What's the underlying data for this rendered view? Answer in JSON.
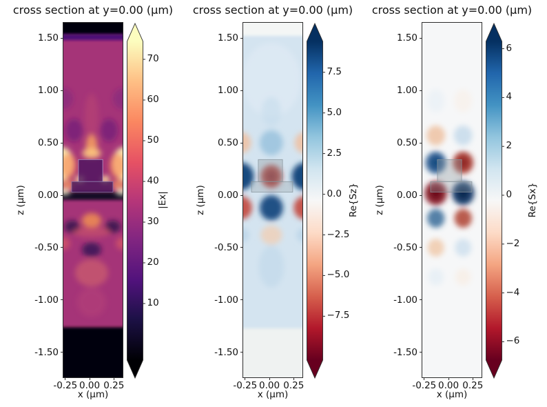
{
  "figure": {
    "background": "#ffffff",
    "text_color": "#111111",
    "spine_color": "#2b2b2b"
  },
  "chart_data": [
    {
      "type": "heatmap",
      "title": "cross section at y=0.00 (μm)",
      "xlabel": "x (μm)",
      "ylabel": "z (μm)",
      "xlim": [
        -0.27,
        0.34
      ],
      "zlim": [
        -1.737,
        1.645
      ],
      "grid": false,
      "xticks": {
        "values": [
          -0.25,
          0.0,
          0.25
        ],
        "labels": [
          "-0.25",
          "0.00",
          "0.25"
        ]
      },
      "zticks": {
        "values": [
          1.5,
          1.0,
          0.5,
          0.0,
          -0.5,
          -1.0,
          -1.5
        ],
        "labels": [
          "1.50",
          "1.00",
          "0.50",
          "0.00",
          "-0.50",
          "-1.00",
          "-1.50"
        ]
      },
      "colorbar": {
        "label": "|Ex|",
        "cmap": "magma",
        "extend": "both",
        "vmin": -3.9,
        "vmax": 74.4,
        "ticks": {
          "values": [
            70,
            60,
            50,
            40,
            30,
            20,
            10
          ],
          "labels": [
            "70",
            "60",
            "50",
            "40",
            "30",
            "20",
            "10"
          ]
        },
        "stops": [
          [
            0,
            "#000004"
          ],
          [
            0.13,
            "#1d1147"
          ],
          [
            0.25,
            "#51127c"
          ],
          [
            0.38,
            "#822681"
          ],
          [
            0.5,
            "#b63679"
          ],
          [
            0.62,
            "#e65164"
          ],
          [
            0.75,
            "#fb8861"
          ],
          [
            0.88,
            "#fec287"
          ],
          [
            1,
            "#fcfdbf"
          ]
        ]
      },
      "field": {
        "base": "#a53478",
        "bands": [
          {
            "z0": 1.645,
            "z1": 1.53,
            "color": "#050308",
            "blur": 1.5
          },
          {
            "z0": 1.535,
            "z1": 1.48,
            "color": "#4a1076",
            "blur": 2
          },
          {
            "z0": 0.03,
            "z1": -0.045,
            "color": "#150a28",
            "blur": 2
          },
          {
            "z0": -1.26,
            "z1": -1.737,
            "color": "#050308",
            "blur": 1.5
          }
        ],
        "blobs": [
          [
            -0.16,
            0.62,
            0.09,
            0.11,
            "#5e1a7a",
            0.55
          ],
          [
            0.2,
            0.62,
            0.09,
            0.11,
            "#5e1a7a",
            0.55
          ],
          [
            -0.27,
            0.92,
            0.1,
            0.1,
            "#731f80",
            0.45
          ],
          [
            0.34,
            0.92,
            0.1,
            0.1,
            "#731f80",
            0.45
          ],
          [
            0.02,
            0.75,
            0.07,
            0.22,
            "#c14a71",
            0.45
          ],
          [
            0.02,
            0.47,
            0.06,
            0.11,
            "#fca95f",
            0.8
          ],
          [
            0.02,
            0.4,
            0.1,
            0.05,
            "#fdc97f",
            0.85
          ],
          [
            -0.29,
            0.3,
            0.13,
            0.16,
            "#fdf0b0",
            0.95
          ],
          [
            0.36,
            0.3,
            0.13,
            0.16,
            "#fdf0b0",
            0.95
          ],
          [
            -0.22,
            0.28,
            0.09,
            0.12,
            "#f6824f",
            0.6
          ],
          [
            0.29,
            0.28,
            0.09,
            0.12,
            "#f6824f",
            0.6
          ],
          [
            -0.23,
            0.1,
            0.07,
            0.05,
            "#f79a5e",
            0.75
          ],
          [
            0.3,
            0.1,
            0.07,
            0.05,
            "#f79a5e",
            0.75
          ],
          [
            -0.1,
            0.15,
            0.045,
            0.035,
            "#fde9a0",
            0.95
          ],
          [
            0.16,
            0.15,
            0.045,
            0.035,
            "#fde9a0",
            0.95
          ],
          [
            -0.26,
            0.03,
            0.06,
            0.03,
            "#e9edc6",
            0.9
          ],
          [
            0.33,
            0.03,
            0.06,
            0.03,
            "#e9edc6",
            0.9
          ],
          [
            -0.18,
            -0.3,
            0.08,
            0.06,
            "#230e45",
            0.75
          ],
          [
            0.24,
            -0.3,
            0.08,
            0.06,
            "#230e45",
            0.75
          ],
          [
            0.02,
            -0.24,
            0.1,
            0.07,
            "#f5954f",
            0.8
          ],
          [
            0.02,
            -0.35,
            0.2,
            0.05,
            "#e06a60",
            0.4
          ],
          [
            0.02,
            -0.52,
            0.1,
            0.07,
            "#2a0f52",
            0.75
          ],
          [
            -0.27,
            -0.46,
            0.07,
            0.06,
            "#ed6a5e",
            0.5
          ],
          [
            0.34,
            -0.46,
            0.07,
            0.06,
            "#ed6a5e",
            0.5
          ],
          [
            0.02,
            -0.74,
            0.17,
            0.13,
            "#dd6f68",
            0.5
          ],
          [
            0.02,
            -1.02,
            0.15,
            0.14,
            "#c04b79",
            0.35
          ]
        ],
        "structures": [
          {
            "x0": -0.115,
            "x1": 0.135,
            "z0": 0.34,
            "z1": 0.13,
            "fill": "#45125e",
            "opacity": 0.75,
            "stroke": "#b5a0cc"
          },
          {
            "x0": -0.185,
            "x1": 0.24,
            "z0": 0.13,
            "z1": 0.03,
            "fill": "#3a1457",
            "opacity": 0.7,
            "stroke": "#8a77a8"
          }
        ]
      }
    },
    {
      "type": "heatmap",
      "title": "cross section at y=0.00 (μm)",
      "xlabel": "x (μm)",
      "ylabel": "z (μm)",
      "xlim": [
        -0.27,
        0.34
      ],
      "zlim": [
        -1.737,
        1.645
      ],
      "grid": false,
      "xticks": {
        "values": [
          -0.25,
          0.0,
          0.25
        ],
        "labels": [
          "-0.25",
          "0.00",
          "0.25"
        ]
      },
      "zticks": {
        "values": [
          1.5,
          1.0,
          0.5,
          0.0,
          -0.5,
          -1.0,
          -1.5
        ],
        "labels": [
          "1.50",
          "1.00",
          "0.50",
          "0.00",
          "-0.50",
          "-1.00",
          "-1.50"
        ]
      },
      "colorbar": {
        "label": "Re{Sz}",
        "cmap": "RdBu",
        "extend": "both",
        "vmin": -10.2,
        "vmax": 9.4,
        "ticks": {
          "values": [
            7.5,
            5.0,
            2.5,
            0.0,
            -2.5,
            -5.0,
            -7.5
          ],
          "labels": [
            "7.5",
            "5.0",
            "2.5",
            "0.0",
            "−2.5",
            "−5.0",
            "−7.5"
          ]
        },
        "stops": [
          [
            0,
            "#67001f"
          ],
          [
            0.1,
            "#b2182b"
          ],
          [
            0.2,
            "#d6604d"
          ],
          [
            0.3,
            "#f4a582"
          ],
          [
            0.4,
            "#fddbc7"
          ],
          [
            0.5,
            "#f7f7f7"
          ],
          [
            0.6,
            "#d1e5f0"
          ],
          [
            0.7,
            "#92c5de"
          ],
          [
            0.8,
            "#4393c3"
          ],
          [
            0.9,
            "#2166ac"
          ],
          [
            1,
            "#053061"
          ]
        ]
      },
      "field": {
        "base": "#d4e4f0",
        "bands": [
          {
            "z0": 1.645,
            "z1": 1.52,
            "color": "#f4f6f5",
            "blur": 2
          },
          {
            "z0": -1.27,
            "z1": -1.737,
            "color": "#eff2f1",
            "blur": 1.5
          }
        ],
        "blobs": [
          [
            0.02,
            1.1,
            0.3,
            0.35,
            "#e3edf5",
            0.55
          ],
          [
            0.02,
            0.8,
            0.1,
            0.14,
            "#c2d9ec",
            0.5
          ],
          [
            -0.29,
            0.5,
            0.1,
            0.1,
            "#f0c0a0",
            0.85
          ],
          [
            0.36,
            0.5,
            0.1,
            0.1,
            "#f0c0a0",
            0.85
          ],
          [
            0.02,
            0.5,
            0.12,
            0.12,
            "#9cc4de",
            0.9
          ],
          [
            -0.29,
            0.18,
            0.13,
            0.13,
            "#0f4179",
            0.95
          ],
          [
            0.36,
            0.18,
            0.13,
            0.13,
            "#0f4179",
            0.95
          ],
          [
            0.02,
            0.18,
            0.11,
            0.11,
            "#b23a31",
            0.95
          ],
          [
            0.02,
            0.18,
            0.055,
            0.055,
            "#8e2026",
            0.9
          ],
          [
            -0.29,
            -0.12,
            0.11,
            0.11,
            "#c34b40",
            0.92
          ],
          [
            0.36,
            -0.12,
            0.11,
            0.11,
            "#c34b40",
            0.92
          ],
          [
            0.02,
            -0.12,
            0.12,
            0.12,
            "#17497f",
            0.95
          ],
          [
            -0.29,
            -0.38,
            0.08,
            0.07,
            "#b5d2e7",
            0.7
          ],
          [
            0.36,
            -0.38,
            0.08,
            0.07,
            "#b5d2e7",
            0.7
          ],
          [
            0.02,
            -0.38,
            0.11,
            0.09,
            "#edd2bd",
            0.9
          ],
          [
            0.02,
            -0.68,
            0.13,
            0.2,
            "#bed7ea",
            0.6
          ]
        ],
        "structures": [
          {
            "x0": -0.115,
            "x1": 0.135,
            "z0": 0.34,
            "z1": 0.13,
            "fill": "#95a0a6",
            "opacity": 0.4,
            "stroke": "#86929a"
          },
          {
            "x0": -0.185,
            "x1": 0.24,
            "z0": 0.13,
            "z1": 0.03,
            "fill": "#95a0a6",
            "opacity": 0.33,
            "stroke": "#86929a"
          }
        ]
      }
    },
    {
      "type": "heatmap",
      "title": "cross section at y=0.00 (μm)",
      "xlabel": "x (μm)",
      "ylabel": "z (μm)",
      "xlim": [
        -0.27,
        0.34
      ],
      "zlim": [
        -1.737,
        1.645
      ],
      "grid": false,
      "xticks": {
        "values": [
          -0.25,
          0.0,
          0.25
        ],
        "labels": [
          "-0.25",
          "0.00",
          "0.25"
        ]
      },
      "zticks": {
        "values": [
          1.5,
          1.0,
          0.5,
          0.0,
          -0.5,
          -1.0,
          -1.5
        ],
        "labels": [
          "1.50",
          "1.00",
          "0.50",
          "0.00",
          "-0.50",
          "-1.00",
          "-1.50"
        ]
      },
      "colorbar": {
        "label": "Re{Sx}",
        "cmap": "RdBu",
        "extend": "both",
        "vmin": -6.75,
        "vmax": 6.3,
        "ticks": {
          "values": [
            6,
            4,
            2,
            0,
            -2,
            -4,
            -6
          ],
          "labels": [
            "6",
            "4",
            "2",
            "0",
            "−2",
            "−4",
            "−6"
          ]
        },
        "stops": [
          [
            0,
            "#67001f"
          ],
          [
            0.1,
            "#b2182b"
          ],
          [
            0.2,
            "#d6604d"
          ],
          [
            0.3,
            "#f4a582"
          ],
          [
            0.4,
            "#fddbc7"
          ],
          [
            0.5,
            "#f7f7f7"
          ],
          [
            0.6,
            "#d1e5f0"
          ],
          [
            0.7,
            "#92c5de"
          ],
          [
            0.8,
            "#4393c3"
          ],
          [
            0.9,
            "#2166ac"
          ],
          [
            1,
            "#053061"
          ]
        ]
      },
      "field": {
        "base": "#f6f7f8",
        "bands": [],
        "blobs": [
          [
            -0.13,
            0.9,
            0.09,
            0.11,
            "#e4eef6",
            0.5
          ],
          [
            0.15,
            0.9,
            0.09,
            0.11,
            "#f9ede3",
            0.5
          ],
          [
            -0.13,
            0.57,
            0.095,
            0.095,
            "#eec2a2",
            0.85
          ],
          [
            0.15,
            0.57,
            0.095,
            0.095,
            "#c6dbeb",
            0.85
          ],
          [
            -0.13,
            0.31,
            0.105,
            0.105,
            "#27598f",
            0.95
          ],
          [
            -0.13,
            0.31,
            0.05,
            0.05,
            "#164a7e",
            0.9
          ],
          [
            0.15,
            0.31,
            0.105,
            0.105,
            "#a83a2e",
            0.95
          ],
          [
            0.15,
            0.31,
            0.05,
            0.05,
            "#8c2626",
            0.9
          ],
          [
            -0.13,
            0.02,
            0.115,
            0.115,
            "#8c2330",
            0.97
          ],
          [
            -0.13,
            0.02,
            0.06,
            0.06,
            "#6b0f1f",
            0.95
          ],
          [
            0.15,
            0.02,
            0.115,
            0.115,
            "#1d3f6d",
            0.97
          ],
          [
            0.15,
            0.02,
            0.06,
            0.06,
            "#0b2a50",
            0.95
          ],
          [
            -0.13,
            -0.22,
            0.09,
            0.09,
            "#44739f",
            0.9
          ],
          [
            0.15,
            -0.22,
            0.09,
            0.09,
            "#b24a3c",
            0.9
          ],
          [
            -0.13,
            -0.5,
            0.085,
            0.085,
            "#f0caac",
            0.85
          ],
          [
            0.15,
            -0.5,
            0.085,
            0.085,
            "#cfe1ee",
            0.85
          ],
          [
            -0.13,
            -0.78,
            0.08,
            0.08,
            "#dfebf4",
            0.6
          ],
          [
            0.15,
            -0.78,
            0.08,
            0.08,
            "#f8ebdf",
            0.6
          ]
        ],
        "structures": [
          {
            "x0": -0.115,
            "x1": 0.135,
            "z0": 0.34,
            "z1": 0.13,
            "fill": "#95a0a6",
            "opacity": 0.4,
            "stroke": "#86929a"
          },
          {
            "x0": -0.185,
            "x1": 0.24,
            "z0": 0.13,
            "z1": 0.03,
            "fill": "#95a0a6",
            "opacity": 0.33,
            "stroke": "#86929a"
          }
        ]
      }
    }
  ]
}
